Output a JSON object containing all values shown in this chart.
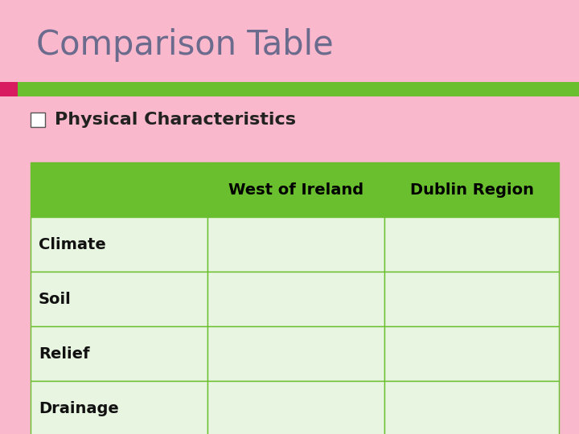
{
  "title": "Comparison Table",
  "title_color": "#6b6b8d",
  "background_color": "#f9b8cc",
  "bullet_text": "Physical Characteristics",
  "stripe_pink": "#d81b60",
  "stripe_green": "#6abf2e",
  "table_header_bg": "#6abf2e",
  "table_header_text_color": "#000000",
  "table_cell_bg": "#e8f5e0",
  "table_border_color": "#6abf2e",
  "col_headers": [
    "West of Ireland",
    "Dublin Region"
  ],
  "row_labels": [
    "Climate",
    "Soil",
    "Relief",
    "Drainage"
  ],
  "title_fontsize": 30,
  "bullet_fontsize": 16,
  "header_fontsize": 14,
  "row_fontsize": 14
}
